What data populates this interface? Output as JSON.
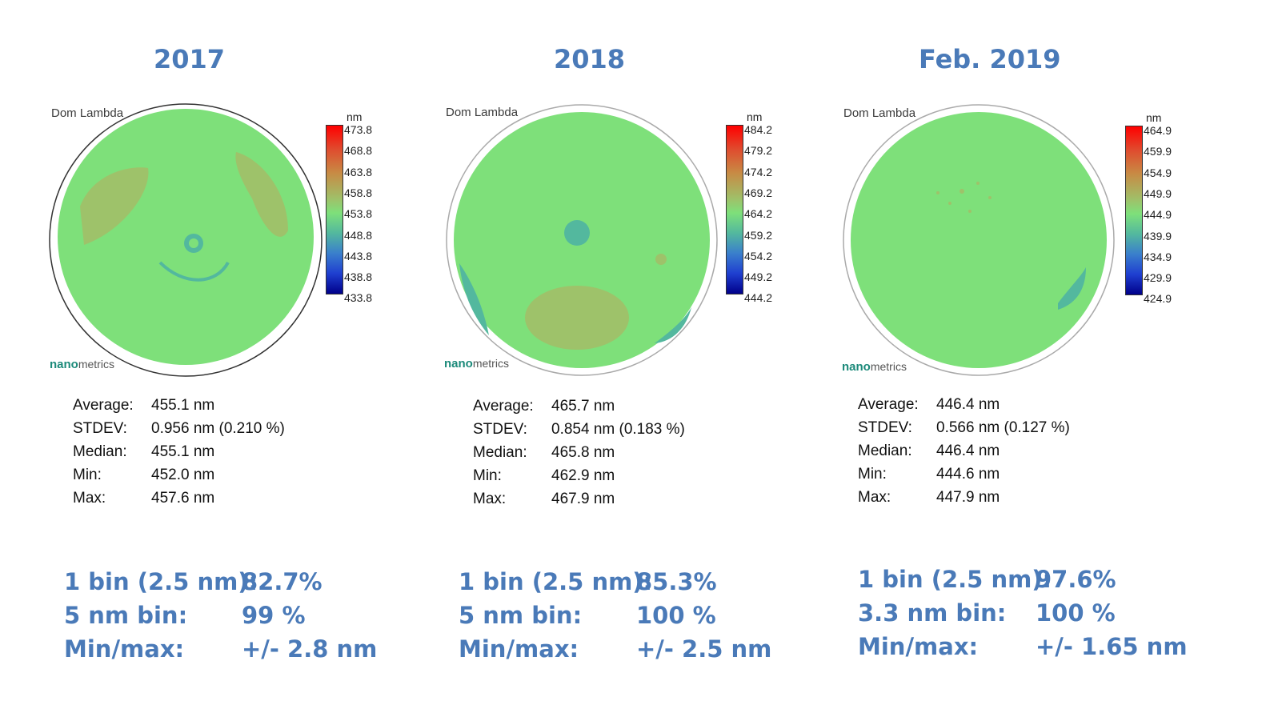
{
  "colors": {
    "heading": "#4a7ab8",
    "map_base": "#7ee07a",
    "map_high": "#9ec26a",
    "map_low": "#53b89e",
    "logo": "#1c8a7a"
  },
  "panels": [
    {
      "year": "2017",
      "dom_label": "Dom Lambda",
      "logo_bold": "nano",
      "logo_rest": "metrics",
      "scale_unit": "nm",
      "scale_ticks": [
        "473.8",
        "468.8",
        "463.8",
        "458.8",
        "453.8",
        "448.8",
        "443.8",
        "438.8",
        "433.8"
      ],
      "stats": [
        {
          "label": "Average:",
          "value": "455.1 nm"
        },
        {
          "label": "STDEV:",
          "value": "0.956 nm (0.210 %)"
        },
        {
          "label": "Median:",
          "value": "455.1 nm"
        },
        {
          "label": "Min:",
          "value": "452.0 nm"
        },
        {
          "label": "Max:",
          "value": "457.6 nm"
        }
      ],
      "bins": [
        {
          "label": "1 bin (2.5 nm):",
          "value": "82.7%"
        },
        {
          "label": "5 nm bin:",
          "value": "99 %"
        },
        {
          "label": "Min/max:",
          "value": "+/- 2.8 nm"
        }
      ]
    },
    {
      "year": "2018",
      "dom_label": "Dom Lambda",
      "logo_bold": "nano",
      "logo_rest": "metrics",
      "scale_unit": "nm",
      "scale_ticks": [
        "484.2",
        "479.2",
        "474.2",
        "469.2",
        "464.2",
        "459.2",
        "454.2",
        "449.2",
        "444.2"
      ],
      "stats": [
        {
          "label": "Average:",
          "value": "465.7 nm"
        },
        {
          "label": "STDEV:",
          "value": "0.854 nm (0.183 %)"
        },
        {
          "label": "Median:",
          "value": "465.8 nm"
        },
        {
          "label": "Min:",
          "value": "462.9 nm"
        },
        {
          "label": "Max:",
          "value": "467.9 nm"
        }
      ],
      "bins": [
        {
          "label": "1 bin (2.5 nm):",
          "value": "85.3%"
        },
        {
          "label": "5 nm bin:",
          "value": "100 %"
        },
        {
          "label": "Min/max:",
          "value": "+/- 2.5 nm"
        }
      ]
    },
    {
      "year": "Feb. 2019",
      "dom_label": "Dom Lambda",
      "logo_bold": "nano",
      "logo_rest": "metrics",
      "scale_unit": "nm",
      "scale_ticks": [
        "464.9",
        "459.9",
        "454.9",
        "449.9",
        "444.9",
        "439.9",
        "434.9",
        "429.9",
        "424.9"
      ],
      "stats": [
        {
          "label": "Average:",
          "value": "446.4 nm"
        },
        {
          "label": "STDEV:",
          "value": "0.566 nm (0.127 %)"
        },
        {
          "label": "Median:",
          "value": "446.4 nm"
        },
        {
          "label": "Min:",
          "value": "444.6 nm"
        },
        {
          "label": "Max:",
          "value": "447.9 nm"
        }
      ],
      "bins": [
        {
          "label": "1 bin (2.5 nm):",
          "value": "97.6%"
        },
        {
          "label": "3.3 nm bin:",
          "value": "100 %"
        },
        {
          "label": "Min/max:",
          "value": "+/- 1.65 nm"
        }
      ]
    }
  ]
}
